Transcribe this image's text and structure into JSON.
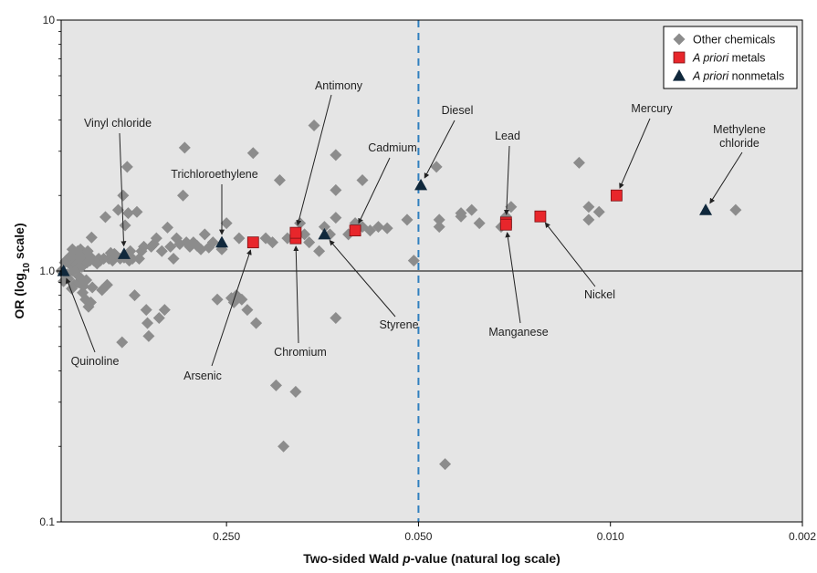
{
  "chart_data": {
    "type": "scatter",
    "xlabel": "Two-sided Wald p-value (natural log scale)",
    "xlabel_parts": [
      "Two-sided Wald ",
      "p",
      "-value (natural log scale)"
    ],
    "ylabel": "OR (log10 scale)",
    "ylabel_parts": [
      "OR (log",
      "10",
      " scale)"
    ],
    "x_scale": "natural log of p-value (reversed: p decreases to the right)",
    "y_scale": "log10",
    "xlim": [
      1.0,
      0.002
    ],
    "ylim": [
      0.1,
      10
    ],
    "y_ticks": [
      {
        "value": 10,
        "label": "10"
      },
      {
        "value": 1.0,
        "label": "1.0"
      },
      {
        "value": 0.1,
        "label": "0.1"
      }
    ],
    "x_ticks": [
      {
        "value": 0.25,
        "label": "0.250"
      },
      {
        "value": 0.05,
        "label": "0.050"
      },
      {
        "value": 0.01,
        "label": "0.010"
      },
      {
        "value": 0.002,
        "label": "0.002"
      }
    ],
    "reference_line_y": 1.0,
    "significance_line_x": 0.05,
    "grid": false,
    "legend_position": "top-right",
    "legend": [
      {
        "label": "Other chemicals",
        "marker": "diamond",
        "color": "#8c8c8c"
      },
      {
        "label_italic": "A priori",
        "label_rest": " metals",
        "marker": "square",
        "color": "#e8262b"
      },
      {
        "label_italic": "A priori",
        "label_rest": " nonmetals",
        "marker": "triangle",
        "color": "#10283c"
      }
    ],
    "series": [
      {
        "name": "Other chemicals",
        "points": [
          [
            1.0,
            1.0
          ],
          [
            0.98,
            0.91
          ],
          [
            0.97,
            1.08
          ],
          [
            0.96,
            1.1
          ],
          [
            0.95,
            0.97
          ],
          [
            0.94,
            0.93
          ],
          [
            0.93,
            1.14
          ],
          [
            0.92,
            1.05
          ],
          [
            0.915,
            0.85
          ],
          [
            0.91,
            1.22
          ],
          [
            0.905,
            1.0
          ],
          [
            0.9,
            1.18
          ],
          [
            0.895,
            0.88
          ],
          [
            0.89,
            1.12
          ],
          [
            0.885,
            1.08
          ],
          [
            0.88,
            1.06
          ],
          [
            0.87,
            1.02
          ],
          [
            0.87,
            1.2
          ],
          [
            0.865,
            0.9
          ],
          [
            0.86,
            0.95
          ],
          [
            0.855,
            1.15
          ],
          [
            0.85,
            1.22
          ],
          [
            0.845,
            1.1
          ],
          [
            0.84,
            1.04
          ],
          [
            0.835,
            0.82
          ],
          [
            0.83,
            0.87
          ],
          [
            0.825,
            1.18
          ],
          [
            0.82,
            1.12
          ],
          [
            0.815,
            0.77
          ],
          [
            0.81,
            0.92
          ],
          [
            0.805,
            1.08
          ],
          [
            0.8,
            1.2
          ],
          [
            0.795,
            0.72
          ],
          [
            0.79,
            1.15
          ],
          [
            0.785,
            1.1
          ],
          [
            0.78,
            0.75
          ],
          [
            0.775,
            1.36
          ],
          [
            0.77,
            0.86
          ],
          [
            0.76,
            1.1
          ],
          [
            0.75,
            1.09
          ],
          [
            0.74,
            1.07
          ],
          [
            0.73,
            1.12
          ],
          [
            0.72,
            1.1
          ],
          [
            0.71,
            0.84
          ],
          [
            0.7,
            1.12
          ],
          [
            0.69,
            1.64
          ],
          [
            0.68,
            0.88
          ],
          [
            0.67,
            1.12
          ],
          [
            0.66,
            1.18
          ],
          [
            0.65,
            1.1
          ],
          [
            0.64,
            1.17
          ],
          [
            0.63,
            1.15
          ],
          [
            0.62,
            1.75
          ],
          [
            0.61,
            1.12
          ],
          [
            0.6,
            0.52
          ],
          [
            0.595,
            2.0
          ],
          [
            0.59,
            1.13
          ],
          [
            0.585,
            1.52
          ],
          [
            0.58,
            1.15
          ],
          [
            0.575,
            2.6
          ],
          [
            0.57,
            1.7
          ],
          [
            0.565,
            1.1
          ],
          [
            0.56,
            1.2
          ],
          [
            0.55,
            1.12
          ],
          [
            0.54,
            0.8
          ],
          [
            0.53,
            1.72
          ],
          [
            0.52,
            1.12
          ],
          [
            0.51,
            1.2
          ],
          [
            0.5,
            1.25
          ],
          [
            0.49,
            0.7
          ],
          [
            0.485,
            0.62
          ],
          [
            0.48,
            0.55
          ],
          [
            0.47,
            1.25
          ],
          [
            0.46,
            1.28
          ],
          [
            0.45,
            1.35
          ],
          [
            0.44,
            0.65
          ],
          [
            0.43,
            1.2
          ],
          [
            0.42,
            0.7
          ],
          [
            0.41,
            1.49
          ],
          [
            0.4,
            1.25
          ],
          [
            0.39,
            1.12
          ],
          [
            0.38,
            1.35
          ],
          [
            0.37,
            1.28
          ],
          [
            0.36,
            2.0
          ],
          [
            0.355,
            3.1
          ],
          [
            0.35,
            1.3
          ],
          [
            0.34,
            1.25
          ],
          [
            0.33,
            1.3
          ],
          [
            0.32,
            1.26
          ],
          [
            0.31,
            1.22
          ],
          [
            0.3,
            1.4
          ],
          [
            0.29,
            1.24
          ],
          [
            0.28,
            1.3
          ],
          [
            0.27,
            0.77
          ],
          [
            0.26,
            1.22
          ],
          [
            0.25,
            1.55
          ],
          [
            0.24,
            0.78
          ],
          [
            0.235,
            0.75
          ],
          [
            0.23,
            0.8
          ],
          [
            0.225,
            1.35
          ],
          [
            0.22,
            0.77
          ],
          [
            0.21,
            0.7
          ],
          [
            0.2,
            2.95
          ],
          [
            0.195,
            0.62
          ],
          [
            0.18,
            1.35
          ],
          [
            0.17,
            1.3
          ],
          [
            0.165,
            0.35
          ],
          [
            0.16,
            2.3
          ],
          [
            0.155,
            0.2
          ],
          [
            0.15,
            1.35
          ],
          [
            0.14,
            0.33
          ],
          [
            0.135,
            1.55
          ],
          [
            0.13,
            1.4
          ],
          [
            0.125,
            1.3
          ],
          [
            0.12,
            3.8
          ],
          [
            0.115,
            1.2
          ],
          [
            0.11,
            1.5
          ],
          [
            0.105,
            1.4
          ],
          [
            0.1,
            2.9
          ],
          [
            0.1,
            2.1
          ],
          [
            0.1,
            1.63
          ],
          [
            0.1,
            0.65
          ],
          [
            0.09,
            1.4
          ],
          [
            0.085,
            1.55
          ],
          [
            0.08,
            2.3
          ],
          [
            0.08,
            1.5
          ],
          [
            0.075,
            1.45
          ],
          [
            0.07,
            1.5
          ],
          [
            0.065,
            1.48
          ],
          [
            0.055,
            1.6
          ],
          [
            0.052,
            1.1
          ],
          [
            0.043,
            2.6
          ],
          [
            0.042,
            1.6
          ],
          [
            0.042,
            1.5
          ],
          [
            0.04,
            0.17
          ],
          [
            0.035,
            1.65
          ],
          [
            0.035,
            1.7
          ],
          [
            0.032,
            1.75
          ],
          [
            0.03,
            1.55
          ],
          [
            0.025,
            1.5
          ],
          [
            0.024,
            1.65
          ],
          [
            0.023,
            1.8
          ],
          [
            0.013,
            2.7
          ],
          [
            0.012,
            1.6
          ],
          [
            0.012,
            1.8
          ],
          [
            0.011,
            1.72
          ],
          [
            0.0035,
            1.75
          ]
        ]
      },
      {
        "name": "A priori metals",
        "points": [
          {
            "label": "Arsenic",
            "x": 0.2,
            "y": 1.3
          },
          {
            "label": "Chromium",
            "x": 0.14,
            "y": 1.35
          },
          {
            "label": "Antimony",
            "x": 0.14,
            "y": 1.42
          },
          {
            "label": "Cadmium",
            "x": 0.085,
            "y": 1.45
          },
          {
            "label": "Lead",
            "x": 0.024,
            "y": 1.56
          },
          {
            "label": "Manganese",
            "x": 0.024,
            "y": 1.53
          },
          {
            "label": "Nickel",
            "x": 0.018,
            "y": 1.65
          },
          {
            "label": "Mercury",
            "x": 0.0095,
            "y": 2.0
          }
        ]
      },
      {
        "name": "A priori nonmetals",
        "points": [
          {
            "label": "Quinoline",
            "x": 0.98,
            "y": 1.0
          },
          {
            "label": "Vinyl chloride",
            "x": 0.59,
            "y": 1.17
          },
          {
            "label": "Trichloroethylene",
            "x": 0.26,
            "y": 1.3
          },
          {
            "label": "Styrene",
            "x": 0.11,
            "y": 1.4
          },
          {
            "label": "Diesel",
            "x": 0.049,
            "y": 2.2
          },
          {
            "label": "Methylene chloride",
            "x": 0.0045,
            "y": 1.75
          }
        ]
      }
    ],
    "annotations": [
      {
        "target": "Quinoline",
        "lines": [
          "Quinoline"
        ]
      },
      {
        "target": "Vinyl chloride",
        "lines": [
          "Vinyl chloride"
        ]
      },
      {
        "target": "Trichloroethylene",
        "lines": [
          "Trichloroethylene"
        ]
      },
      {
        "target": "Arsenic",
        "lines": [
          "Arsenic"
        ]
      },
      {
        "target": "Chromium",
        "lines": [
          "Chromium"
        ]
      },
      {
        "target": "Antimony",
        "lines": [
          "Antimony"
        ]
      },
      {
        "target": "Styrene",
        "lines": [
          "Styrene"
        ]
      },
      {
        "target": "Cadmium",
        "lines": [
          "Cadmium"
        ]
      },
      {
        "target": "Diesel",
        "lines": [
          "Diesel"
        ]
      },
      {
        "target": "Lead",
        "lines": [
          "Lead"
        ]
      },
      {
        "target": "Manganese",
        "lines": [
          "Manganese"
        ]
      },
      {
        "target": "Nickel",
        "lines": [
          "Nickel"
        ]
      },
      {
        "target": "Mercury",
        "lines": [
          "Mercury"
        ]
      },
      {
        "target": "Methylene chloride",
        "lines": [
          "Methylene",
          "chloride"
        ]
      }
    ]
  }
}
